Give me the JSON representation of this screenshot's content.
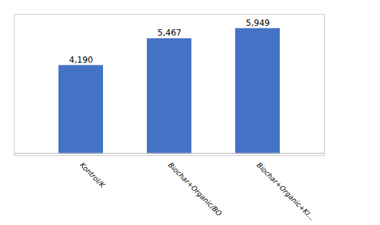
{
  "chart_data": {
    "type": "bar",
    "categories": [
      "Kontrol/K",
      "Biochar+Organic/BO",
      "Biochar+Organic+Kl..."
    ],
    "values": [
      4190,
      5467,
      5949
    ],
    "value_labels": [
      "4,190",
      "5,467",
      "5,949"
    ],
    "data_labels": true,
    "color": "#4472C4",
    "ylim": [
      -108,
      6624
    ],
    "tick_labels": "x",
    "grid": false
  }
}
